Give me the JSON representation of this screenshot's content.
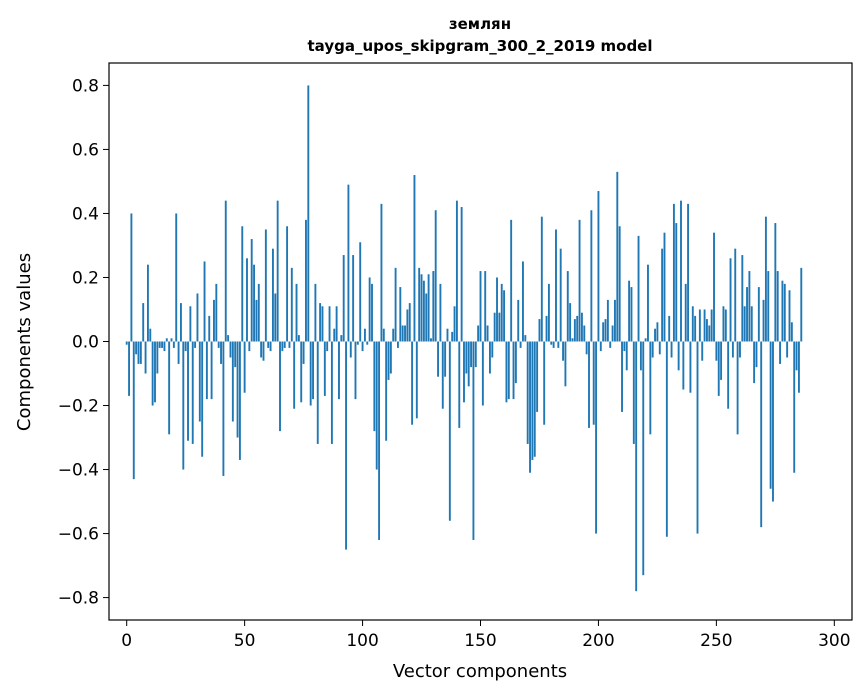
{
  "chart_data": {
    "type": "bar",
    "title": "землян",
    "subtitle": "tayga_upos_skipgram_300_2_2019 model",
    "xlabel": "Vector components",
    "ylabel": "Components values",
    "xlim": [
      -7.5,
      307.5
    ],
    "ylim": [
      -0.87,
      0.87
    ],
    "xticks": [
      0,
      50,
      100,
      150,
      200,
      250,
      300
    ],
    "yticks": [
      -0.8,
      -0.6,
      -0.4,
      -0.2,
      0.0,
      0.2,
      0.4,
      0.6,
      0.8
    ],
    "ytick_labels": [
      "−0.8",
      "−0.6",
      "−0.4",
      "−0.2",
      "0.0",
      "0.2",
      "0.4",
      "0.6",
      "0.8"
    ],
    "bar_color": "#1f77b4",
    "values": [
      -0.01,
      -0.17,
      0.4,
      -0.43,
      -0.04,
      -0.07,
      -0.07,
      0.12,
      -0.1,
      0.24,
      0.04,
      -0.2,
      -0.19,
      -0.1,
      -0.02,
      -0.02,
      -0.03,
      0.01,
      -0.29,
      0.01,
      -0.02,
      0.4,
      -0.07,
      0.12,
      -0.4,
      -0.03,
      -0.31,
      0.11,
      -0.32,
      -0.02,
      0.15,
      -0.25,
      -0.36,
      0.25,
      -0.18,
      0.08,
      -0.18,
      0.13,
      0.18,
      -0.02,
      -0.07,
      -0.42,
      0.44,
      0.02,
      -0.05,
      -0.25,
      -0.08,
      -0.3,
      -0.37,
      0.36,
      -0.16,
      0.26,
      -0.03,
      0.32,
      0.24,
      0.13,
      0.18,
      -0.05,
      -0.06,
      0.35,
      -0.02,
      -0.03,
      0.29,
      0.15,
      0.44,
      -0.28,
      -0.03,
      -0.02,
      0.36,
      -0.02,
      0.23,
      -0.21,
      0.18,
      0.02,
      -0.19,
      -0.07,
      0.38,
      0.8,
      -0.2,
      -0.18,
      0.18,
      -0.32,
      0.12,
      0.11,
      -0.17,
      -0.03,
      0.11,
      -0.32,
      0.04,
      0.11,
      -0.18,
      0.02,
      0.27,
      -0.65,
      0.49,
      -0.05,
      0.27,
      -0.18,
      -0.01,
      0.31,
      -0.03,
      0.04,
      -0.01,
      0.2,
      0.18,
      -0.28,
      -0.4,
      -0.62,
      0.43,
      0.04,
      -0.31,
      -0.12,
      -0.1,
      0.04,
      0.23,
      -0.02,
      0.17,
      0.05,
      0.05,
      0.1,
      0.12,
      -0.26,
      0.52,
      -0.24,
      0.23,
      0.21,
      0.19,
      0.15,
      0.21,
      0.01,
      0.22,
      0.41,
      -0.11,
      0.18,
      -0.21,
      -0.11,
      0.04,
      -0.56,
      0.03,
      0.11,
      0.44,
      -0.27,
      0.42,
      -0.19,
      -0.1,
      -0.14,
      -0.08,
      -0.62,
      -0.08,
      0.05,
      0.22,
      -0.2,
      0.22,
      0.05,
      -0.1,
      -0.05,
      0.09,
      0.2,
      0.09,
      0.18,
      0.16,
      -0.19,
      -0.18,
      0.38,
      -0.18,
      -0.13,
      0.13,
      -0.02,
      0.25,
      0.02,
      -0.32,
      -0.41,
      -0.37,
      -0.36,
      -0.22,
      0.07,
      0.39,
      -0.26,
      0.08,
      0.18,
      -0.01,
      -0.02,
      0.35,
      -0.02,
      0.29,
      -0.06,
      -0.14,
      0.22,
      0.12,
      0.01,
      0.07,
      0.08,
      0.38,
      0.09,
      0.05,
      -0.04,
      -0.27,
      0.41,
      -0.26,
      -0.6,
      0.47,
      -0.03,
      0.06,
      0.07,
      0.13,
      -0.02,
      0.05,
      0.13,
      0.53,
      0.36,
      -0.22,
      -0.03,
      -0.09,
      0.19,
      0.17,
      -0.32,
      -0.78,
      0.33,
      -0.09,
      -0.73,
      0.01,
      0.24,
      -0.29,
      -0.05,
      0.04,
      0.06,
      -0.04,
      0.29,
      0.34,
      -0.61,
      0.08,
      -0.05,
      0.43,
      0.37,
      -0.09,
      0.44,
      -0.15,
      0.18,
      0.43,
      -0.16,
      0.11,
      0.08,
      -0.6,
      0.1,
      -0.06,
      0.1,
      0.07,
      0.05,
      0.1,
      0.34,
      -0.06,
      -0.17,
      -0.12,
      0.11,
      0.1,
      -0.21,
      0.26,
      -0.05,
      0.29,
      -0.29,
      -0.05,
      0.27,
      0.11,
      0.17,
      0.22,
      0.11,
      -0.13,
      -0.08,
      0.17,
      -0.58,
      0.13,
      0.39,
      0.22,
      -0.46,
      -0.5,
      0.37,
      0.22,
      -0.07,
      0.19,
      0.18,
      -0.05,
      0.16,
      0.06,
      -0.41,
      -0.09,
      -0.16,
      0.23
    ]
  }
}
